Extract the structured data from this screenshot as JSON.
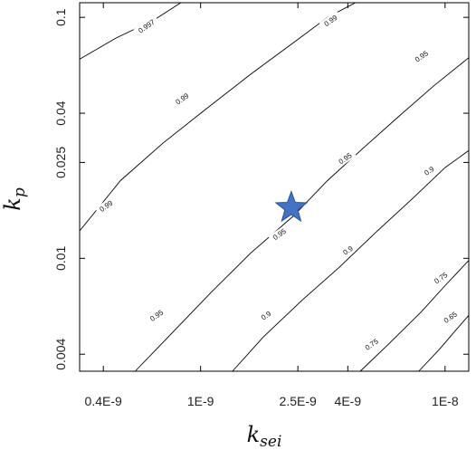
{
  "chart_data": {
    "type": "contour",
    "xlabel": "k",
    "xlabel_sub": "sei",
    "ylabel": "k",
    "ylabel_sub": "p",
    "x_scale": "log",
    "y_scale": "log",
    "xlim": [
      3.2e-10,
      1.25e-08
    ],
    "ylim": [
      0.0034,
      0.115
    ],
    "x_ticks": [
      {
        "value": 4e-10,
        "label": "0.4E-9"
      },
      {
        "value": 1e-09,
        "label": "1E-9"
      },
      {
        "value": 2.5e-09,
        "label": "2.5E-9"
      },
      {
        "value": 4e-09,
        "label": "4E-9"
      },
      {
        "value": 1e-08,
        "label": "1E-8"
      }
    ],
    "y_ticks": [
      {
        "value": 0.004,
        "label": "0.004"
      },
      {
        "value": 0.01,
        "label": "0.01"
      },
      {
        "value": 0.025,
        "label": "0.025"
      },
      {
        "value": 0.04,
        "label": "0.04"
      },
      {
        "value": 0.1,
        "label": "0.1"
      }
    ],
    "grid": false,
    "contours": [
      {
        "level": "0.997",
        "points": [
          [
            3.2e-10,
            0.067
          ],
          [
            4.5e-10,
            0.082
          ],
          [
            6.5e-10,
            0.098
          ],
          [
            8.3e-10,
            0.115
          ]
        ],
        "label_at": [
          6e-10,
          0.092
        ]
      },
      {
        "level": "0.99",
        "points": [
          [
            3.2e-10,
            0.013
          ],
          [
            4.7e-10,
            0.021
          ],
          [
            7e-10,
            0.03
          ],
          [
            1e-09,
            0.04
          ],
          [
            1.6e-09,
            0.058
          ],
          [
            2.5e-09,
            0.081
          ],
          [
            3.3e-09,
            0.1
          ],
          [
            4.3e-09,
            0.115
          ]
        ],
        "label_at": [
          8.4e-10,
          0.046
        ]
      },
      {
        "level": "0.99",
        "points": [
          [
            3.2e-10,
            0.013
          ]
        ],
        "label_at": [
          4.1e-10,
          0.0165
        ]
      },
      {
        "level": "0.99",
        "points": [
          [
            2.5e-09,
            0.081
          ]
        ],
        "label_at": [
          3.4e-09,
          0.097
        ]
      },
      {
        "level": "0.95",
        "points": [
          [
            5.4e-10,
            0.0034
          ],
          [
            7.5e-10,
            0.0048
          ],
          [
            1.1e-09,
            0.0072
          ],
          [
            1.6e-09,
            0.0105
          ],
          [
            2.4e-09,
            0.015
          ],
          [
            3.3e-09,
            0.021
          ],
          [
            4.6e-09,
            0.0285
          ],
          [
            6.5e-09,
            0.039
          ],
          [
            9e-09,
            0.052
          ],
          [
            1.25e-08,
            0.068
          ]
        ],
        "label_at": [
          8e-09,
          0.069
        ]
      },
      {
        "level": "0.95",
        "points": [
          [
            5.4e-10,
            0.0034
          ]
        ],
        "label_at": [
          6.6e-10,
          0.0058
        ]
      },
      {
        "level": "0.95",
        "points": [
          [
            1.6e-09,
            0.0105
          ]
        ],
        "label_at": [
          2.1e-09,
          0.0126
        ]
      },
      {
        "level": "0.95",
        "points": [
          [
            3.3e-09,
            0.021
          ]
        ],
        "label_at": [
          3.9e-09,
          0.026
        ]
      },
      {
        "level": "0.9",
        "points": [
          [
            1.35e-09,
            0.0034
          ],
          [
            1.8e-09,
            0.0047
          ],
          [
            2.6e-09,
            0.0067
          ],
          [
            3.7e-09,
            0.0092
          ],
          [
            5.2e-09,
            0.0128
          ],
          [
            7.4e-09,
            0.0178
          ],
          [
            1e-08,
            0.0238
          ],
          [
            1.25e-08,
            0.028
          ]
        ],
        "label_at": [
          1.85e-09,
          0.0058
        ]
      },
      {
        "level": "0.9",
        "points": [
          [
            1.35e-09,
            0.0034
          ]
        ],
        "label_at": [
          4e-09,
          0.0108
        ]
      },
      {
        "level": "0.9",
        "points": [
          [
            5.2e-09,
            0.0128
          ]
        ],
        "label_at": [
          8.6e-09,
          0.0231
        ]
      },
      {
        "level": "0.75",
        "points": [
          [
            4.5e-09,
            0.0034
          ],
          [
            6e-09,
            0.0045
          ],
          [
            8e-09,
            0.006
          ],
          [
            1e-08,
            0.0077
          ],
          [
            1.25e-08,
            0.0098
          ]
        ],
        "label_at": [
          5e-09,
          0.0044
        ]
      },
      {
        "level": "0.75",
        "points": [
          [
            4.5e-09,
            0.0034
          ]
        ],
        "label_at": [
          9.6e-09,
          0.0083
        ]
      },
      {
        "level": "0.65",
        "points": [
          [
            7.8e-09,
            0.0034
          ],
          [
            9.5e-09,
            0.0042
          ],
          [
            1.1e-08,
            0.005
          ],
          [
            1.25e-08,
            0.0058
          ]
        ],
        "label_at": [
          1.05e-08,
          0.0057
        ]
      }
    ],
    "marker": {
      "shape": "star",
      "color": "#4472C4",
      "x": 2.35e-09,
      "y": 0.0162
    }
  }
}
